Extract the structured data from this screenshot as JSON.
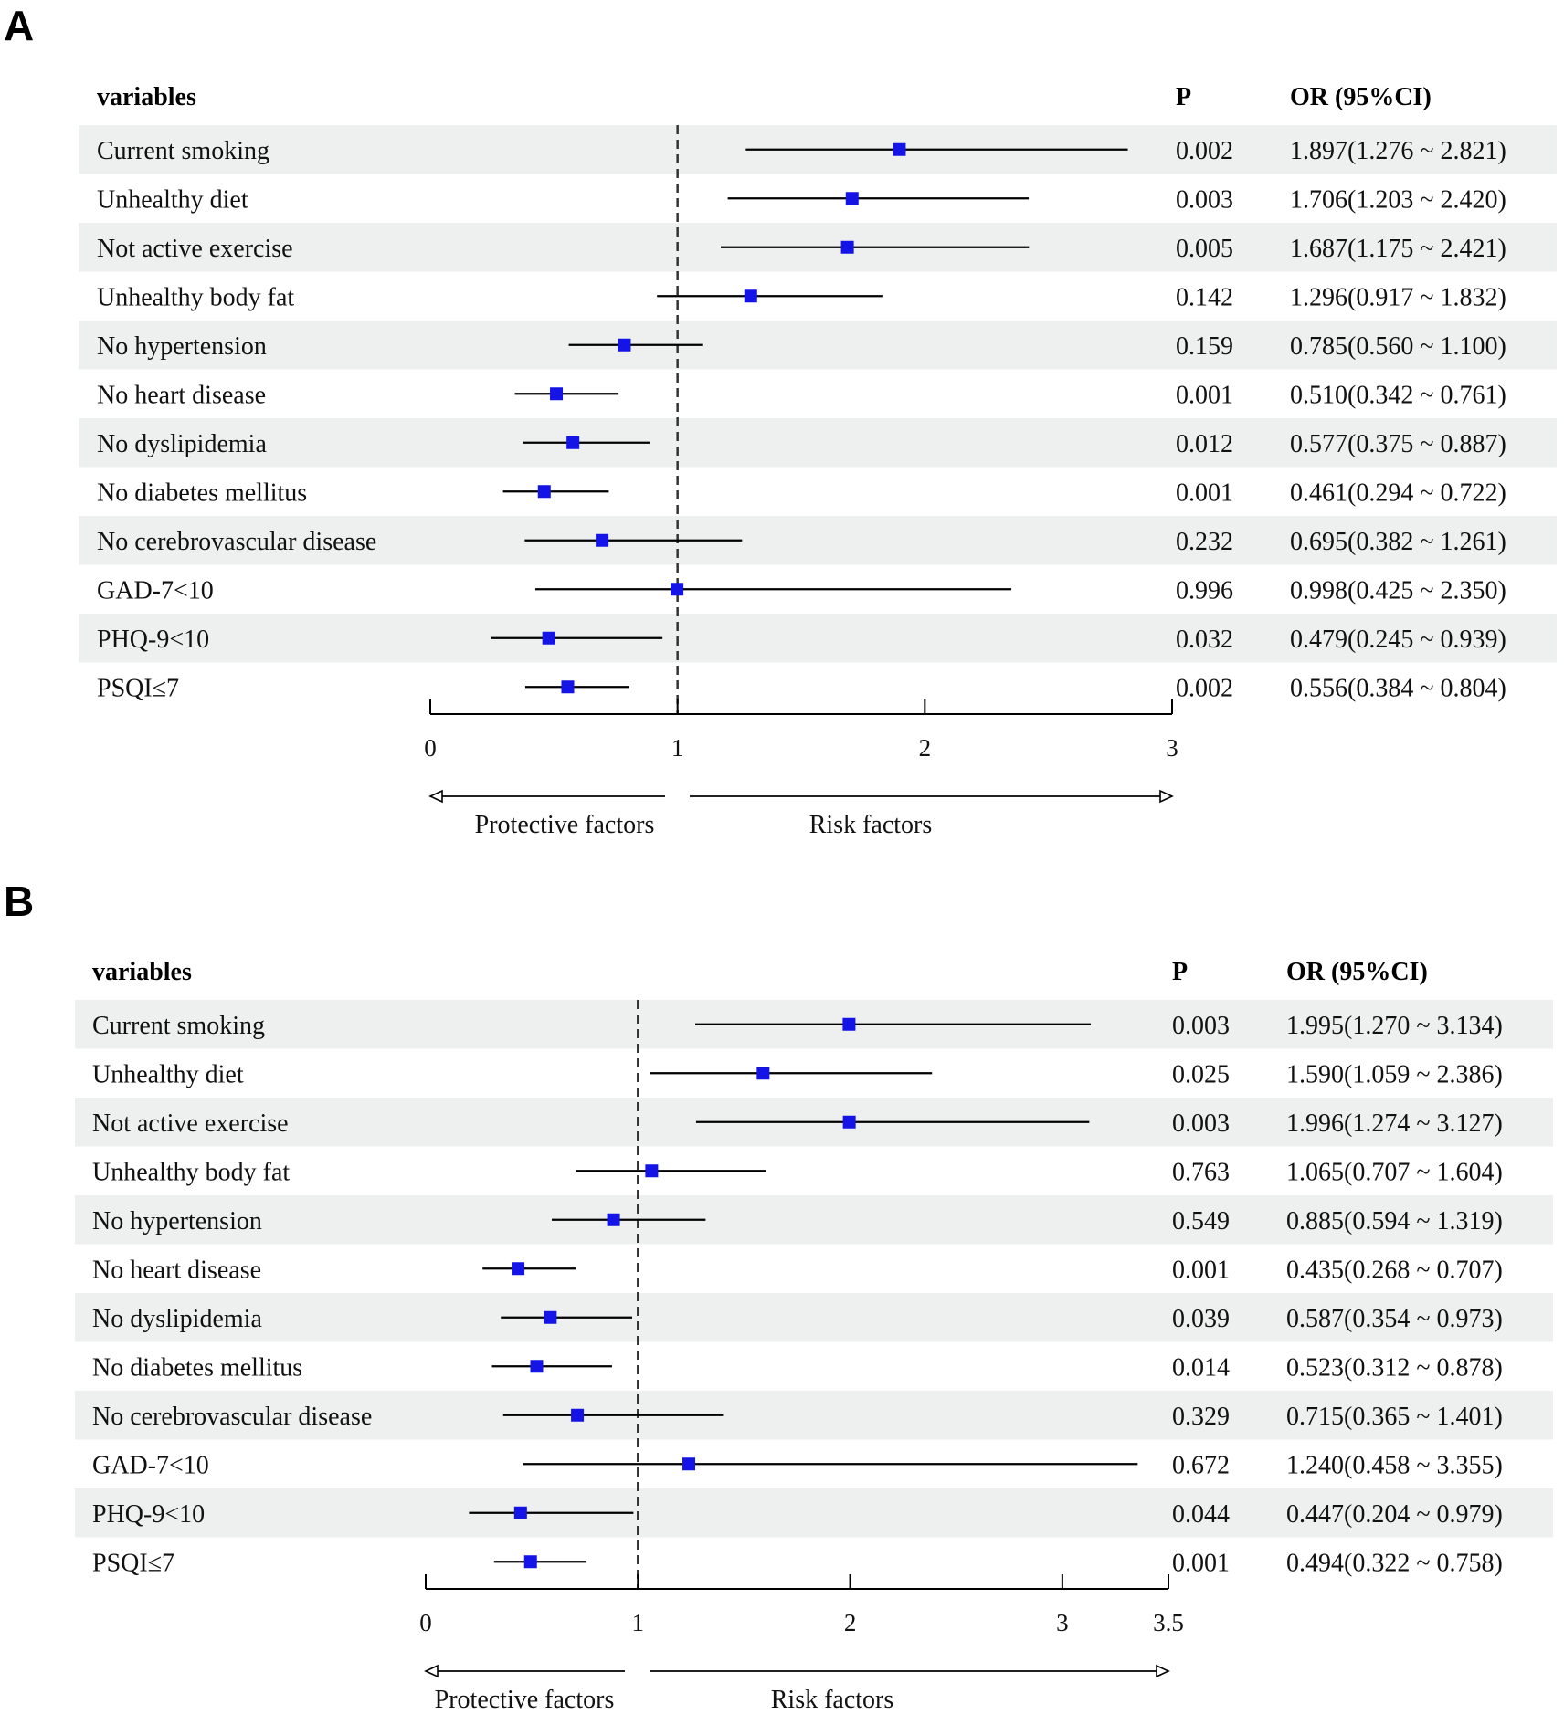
{
  "chart_data": [
    {
      "type": "forest",
      "panel_label": "A",
      "headers": {
        "variables": "variables",
        "p": "P",
        "or": "OR (95%CI)"
      },
      "reference_line": 1,
      "xlim": [
        0,
        3
      ],
      "ticks": [
        0,
        1,
        2,
        3
      ],
      "tick_labels": [
        "0",
        "1",
        "2",
        "3"
      ],
      "direction_labels": {
        "left": "Protective factors",
        "right": "Risk factors"
      },
      "rows": [
        {
          "variable": "Current smoking",
          "or": 1.897,
          "lower": 1.276,
          "upper": 2.821,
          "p": "0.002",
          "or_text": "1.897(1.276 ~ 2.821)"
        },
        {
          "variable": "Unhealthy diet",
          "or": 1.706,
          "lower": 1.203,
          "upper": 2.42,
          "p": "0.003",
          "or_text": "1.706(1.203 ~ 2.420)"
        },
        {
          "variable": "Not active exercise",
          "or": 1.687,
          "lower": 1.175,
          "upper": 2.421,
          "p": "0.005",
          "or_text": "1.687(1.175 ~ 2.421)"
        },
        {
          "variable": "Unhealthy body fat",
          "or": 1.296,
          "lower": 0.917,
          "upper": 1.832,
          "p": "0.142",
          "or_text": "1.296(0.917 ~ 1.832)"
        },
        {
          "variable": "No hypertension",
          "or": 0.785,
          "lower": 0.56,
          "upper": 1.1,
          "p": "0.159",
          "or_text": "0.785(0.560 ~ 1.100)"
        },
        {
          "variable": "No heart disease",
          "or": 0.51,
          "lower": 0.342,
          "upper": 0.761,
          "p": "0.001",
          "or_text": "0.510(0.342 ~ 0.761)"
        },
        {
          "variable": "No dyslipidemia",
          "or": 0.577,
          "lower": 0.375,
          "upper": 0.887,
          "p": "0.012",
          "or_text": "0.577(0.375 ~ 0.887)"
        },
        {
          "variable": "No diabetes mellitus",
          "or": 0.461,
          "lower": 0.294,
          "upper": 0.722,
          "p": "0.001",
          "or_text": "0.461(0.294 ~ 0.722)"
        },
        {
          "variable": "No cerebrovascular disease",
          "or": 0.695,
          "lower": 0.382,
          "upper": 1.261,
          "p": "0.232",
          "or_text": "0.695(0.382 ~ 1.261)"
        },
        {
          "variable": "GAD-7<10",
          "or": 0.998,
          "lower": 0.425,
          "upper": 2.35,
          "p": "0.996",
          "or_text": "0.998(0.425 ~ 2.350)"
        },
        {
          "variable": "PHQ-9<10",
          "or": 0.479,
          "lower": 0.245,
          "upper": 0.939,
          "p": "0.032",
          "or_text": "0.479(0.245 ~ 0.939)"
        },
        {
          "variable": "PSQI≤7",
          "or": 0.556,
          "lower": 0.384,
          "upper": 0.804,
          "p": "0.002",
          "or_text": "0.556(0.384 ~ 0.804)"
        }
      ]
    },
    {
      "type": "forest",
      "panel_label": "B",
      "headers": {
        "variables": "variables",
        "p": "P",
        "or": "OR (95%CI)"
      },
      "reference_line": 1,
      "xlim": [
        0,
        3.5
      ],
      "ticks": [
        0,
        1,
        2,
        3,
        3.5
      ],
      "tick_labels": [
        "0",
        "1",
        "2",
        "3",
        "3.5"
      ],
      "direction_labels": {
        "left": "Protective factors",
        "right": "Risk factors"
      },
      "rows": [
        {
          "variable": "Current smoking",
          "or": 1.995,
          "lower": 1.27,
          "upper": 3.134,
          "p": "0.003",
          "or_text": "1.995(1.270 ~ 3.134)"
        },
        {
          "variable": "Unhealthy diet",
          "or": 1.59,
          "lower": 1.059,
          "upper": 2.386,
          "p": "0.025",
          "or_text": "1.590(1.059 ~ 2.386)"
        },
        {
          "variable": "Not active exercise",
          "or": 1.996,
          "lower": 1.274,
          "upper": 3.127,
          "p": "0.003",
          "or_text": "1.996(1.274 ~ 3.127)"
        },
        {
          "variable": "Unhealthy body fat",
          "or": 1.065,
          "lower": 0.707,
          "upper": 1.604,
          "p": "0.763",
          "or_text": "1.065(0.707 ~ 1.604)"
        },
        {
          "variable": "No hypertension",
          "or": 0.885,
          "lower": 0.594,
          "upper": 1.319,
          "p": "0.549",
          "or_text": "0.885(0.594 ~ 1.319)"
        },
        {
          "variable": "No heart disease",
          "or": 0.435,
          "lower": 0.268,
          "upper": 0.707,
          "p": "0.001",
          "or_text": "0.435(0.268 ~ 0.707)"
        },
        {
          "variable": "No dyslipidemia",
          "or": 0.587,
          "lower": 0.354,
          "upper": 0.973,
          "p": "0.039",
          "or_text": "0.587(0.354 ~ 0.973)"
        },
        {
          "variable": "No diabetes mellitus",
          "or": 0.523,
          "lower": 0.312,
          "upper": 0.878,
          "p": "0.014",
          "or_text": "0.523(0.312 ~ 0.878)"
        },
        {
          "variable": "No cerebrovascular disease",
          "or": 0.715,
          "lower": 0.365,
          "upper": 1.401,
          "p": "0.329",
          "or_text": "0.715(0.365 ~ 1.401)"
        },
        {
          "variable": "GAD-7<10",
          "or": 1.24,
          "lower": 0.458,
          "upper": 3.355,
          "p": "0.672",
          "or_text": "1.240(0.458 ~ 3.355)"
        },
        {
          "variable": "PHQ-9<10",
          "or": 0.447,
          "lower": 0.204,
          "upper": 0.979,
          "p": "0.044",
          "or_text": "0.447(0.204 ~ 0.979)"
        },
        {
          "variable": "PSQI≤7",
          "or": 0.494,
          "lower": 0.322,
          "upper": 0.758,
          "p": "0.001",
          "or_text": "0.494(0.322 ~ 0.758)"
        }
      ]
    }
  ],
  "colors": {
    "marker": "#1414e6",
    "line": "#000000",
    "stripe": "#eef0ef",
    "reference": "#333333"
  }
}
